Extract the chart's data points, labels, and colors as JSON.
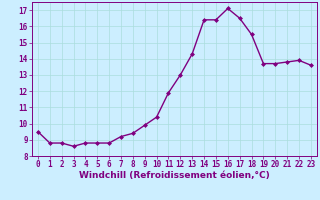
{
  "x": [
    0,
    1,
    2,
    3,
    4,
    5,
    6,
    7,
    8,
    9,
    10,
    11,
    12,
    13,
    14,
    15,
    16,
    17,
    18,
    19,
    20,
    21,
    22,
    23
  ],
  "y": [
    9.5,
    8.8,
    8.8,
    8.6,
    8.8,
    8.8,
    8.8,
    9.2,
    9.4,
    9.9,
    10.4,
    11.9,
    13.0,
    14.3,
    16.4,
    16.4,
    17.1,
    16.5,
    15.5,
    13.7,
    13.7,
    13.8,
    13.9,
    13.6
  ],
  "line_color": "#800080",
  "marker": "D",
  "marker_size": 2.0,
  "bg_color": "#cceeff",
  "grid_color": "#aadddd",
  "xlabel": "Windchill (Refroidissement éolien,°C)",
  "ylabel": "",
  "xlim": [
    -0.5,
    23.5
  ],
  "ylim": [
    8,
    17.5
  ],
  "yticks": [
    8,
    9,
    10,
    11,
    12,
    13,
    14,
    15,
    16,
    17
  ],
  "xticks": [
    0,
    1,
    2,
    3,
    4,
    5,
    6,
    7,
    8,
    9,
    10,
    11,
    12,
    13,
    14,
    15,
    16,
    17,
    18,
    19,
    20,
    21,
    22,
    23
  ],
  "tick_label_size": 5.5,
  "xlabel_size": 6.5,
  "axis_color": "#800080",
  "spine_color": "#800080",
  "linewidth": 1.0
}
